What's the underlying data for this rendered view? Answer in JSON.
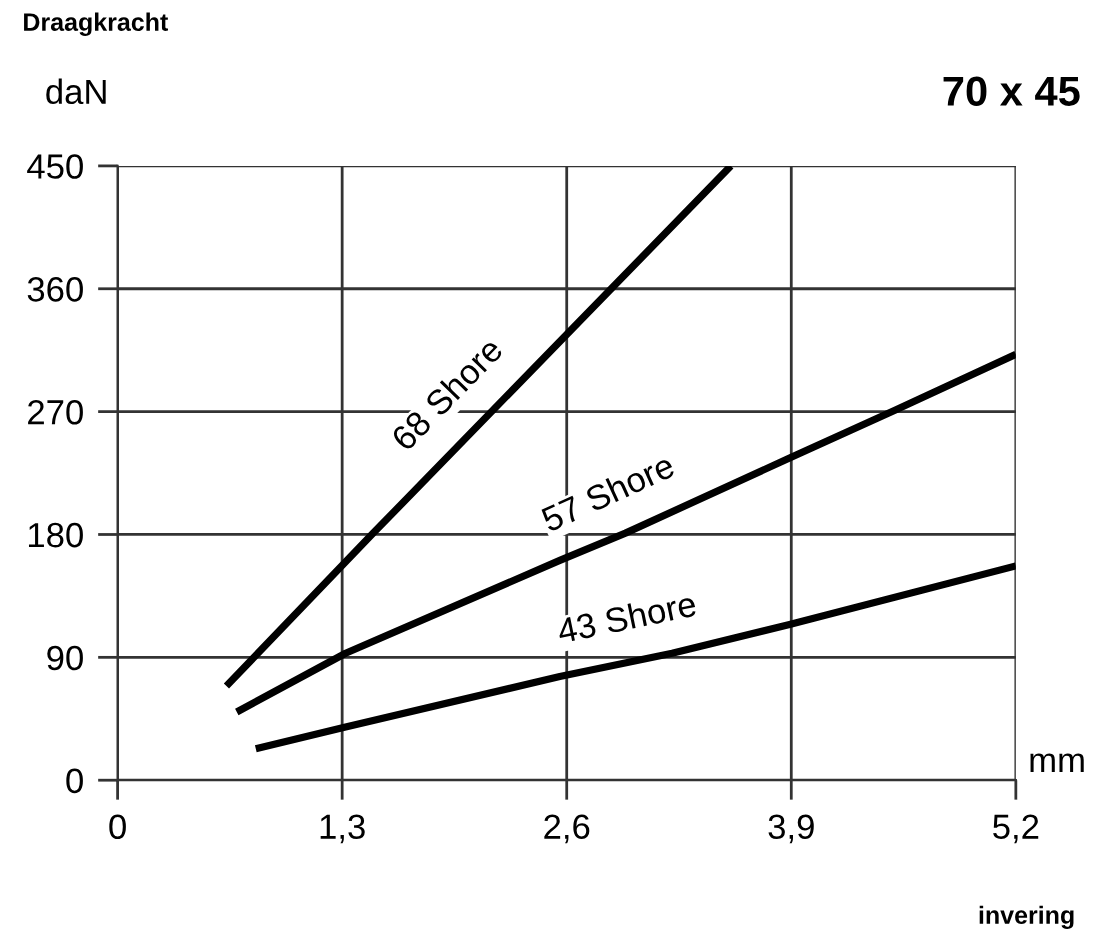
{
  "chart_data": {
    "type": "line",
    "title": "70 x 45",
    "ylabel": "daN",
    "xlabel": "mm",
    "annotations": [
      "Draagkracht",
      "invering"
    ],
    "xlim": [
      0,
      5.2
    ],
    "ylim": [
      0,
      450
    ],
    "xticks": [
      {
        "value": 0,
        "label": "0"
      },
      {
        "value": 1.3,
        "label": "1,3"
      },
      {
        "value": 2.6,
        "label": "2,6"
      },
      {
        "value": 3.9,
        "label": "3,9"
      },
      {
        "value": 5.2,
        "label": "5,2"
      }
    ],
    "yticks": [
      0,
      90,
      180,
      270,
      360,
      450
    ],
    "grid": true,
    "legend": false,
    "marker": "none",
    "line_style": "solid",
    "series": [
      {
        "name": "68 Shore",
        "color": "#000000",
        "x": [
          0.63,
          1.48,
          3.55
        ],
        "values": [
          69,
          181,
          450
        ]
      },
      {
        "name": "57 Shore",
        "color": "#000000",
        "x": [
          0.69,
          1.32,
          2.56,
          2.94,
          3.89,
          4.5,
          5.2
        ],
        "values": [
          50,
          93,
          161,
          181,
          236,
          271,
          312
        ]
      },
      {
        "name": "43 Shore",
        "color": "#000000",
        "x": [
          0.8,
          1.32,
          2.56,
          3.21,
          3.89,
          5.2
        ],
        "values": [
          23,
          39,
          76,
          93,
          114,
          157
        ]
      }
    ]
  }
}
